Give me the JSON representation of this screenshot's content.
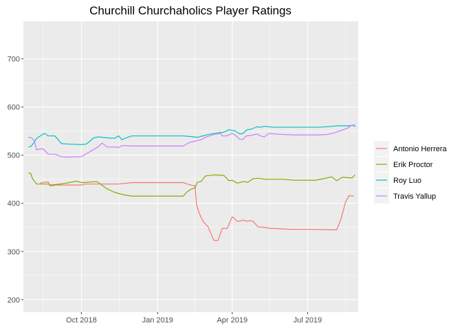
{
  "chart_data": {
    "type": "line",
    "title": "Churchill Churchaholics Player Ratings",
    "xlabel": "",
    "ylabel": "",
    "xlim": [
      "2018-07-23",
      "2019-08-31"
    ],
    "ylim": [
      174,
      778
    ],
    "x_ticks": [
      {
        "value": "2018-10-01",
        "label": "Oct 2018"
      },
      {
        "value": "2019-01-01",
        "label": "Jan 2019"
      },
      {
        "value": "2019-04-01",
        "label": "Apr 2019"
      },
      {
        "value": "2019-07-01",
        "label": "Jul 2019"
      }
    ],
    "y_ticks": [
      200,
      300,
      400,
      500,
      600,
      700
    ],
    "grid": true,
    "legend_position": "right",
    "series": [
      {
        "name": "Antonio Herrera",
        "color": "#F8766D",
        "points": [
          [
            "2018-08-12",
            442
          ],
          [
            "2018-08-18",
            444
          ],
          [
            "2018-08-22",
            444
          ],
          [
            "2018-08-24",
            436
          ],
          [
            "2018-09-01",
            438
          ],
          [
            "2018-09-15",
            438
          ],
          [
            "2018-10-01",
            438
          ],
          [
            "2018-10-05",
            440
          ],
          [
            "2018-11-01",
            440
          ],
          [
            "2018-11-15",
            440
          ],
          [
            "2018-12-01",
            443
          ],
          [
            "2018-12-15",
            443
          ],
          [
            "2019-01-15",
            443
          ],
          [
            "2019-02-01",
            443
          ],
          [
            "2019-02-06",
            440
          ],
          [
            "2019-02-12",
            437
          ],
          [
            "2019-02-15",
            437
          ],
          [
            "2019-02-17",
            397
          ],
          [
            "2019-02-20",
            380
          ],
          [
            "2019-02-25",
            362
          ],
          [
            "2019-03-03",
            351
          ],
          [
            "2019-03-07",
            334
          ],
          [
            "2019-03-10",
            323
          ],
          [
            "2019-03-15",
            323
          ],
          [
            "2019-03-20",
            348
          ],
          [
            "2019-03-26",
            348
          ],
          [
            "2019-04-01",
            372
          ],
          [
            "2019-04-07",
            363
          ],
          [
            "2019-04-10",
            363
          ],
          [
            "2019-04-14",
            365
          ],
          [
            "2019-04-18",
            363
          ],
          [
            "2019-04-22",
            364
          ],
          [
            "2019-04-26",
            363
          ],
          [
            "2019-05-02",
            351
          ],
          [
            "2019-05-10",
            350
          ],
          [
            "2019-05-17",
            348
          ],
          [
            "2019-06-01",
            347
          ],
          [
            "2019-06-10",
            346
          ],
          [
            "2019-07-01",
            346
          ],
          [
            "2019-08-01",
            345
          ],
          [
            "2019-08-05",
            345
          ],
          [
            "2019-08-10",
            366
          ],
          [
            "2019-08-16",
            404
          ],
          [
            "2019-08-20",
            416
          ],
          [
            "2019-08-26",
            415
          ]
        ]
      },
      {
        "name": "Erik Proctor",
        "color": "#7CAE00",
        "points": [
          [
            "2018-07-29",
            463
          ],
          [
            "2018-08-01",
            462
          ],
          [
            "2018-08-03",
            451
          ],
          [
            "2018-08-08",
            440
          ],
          [
            "2018-08-22",
            440
          ],
          [
            "2018-08-26",
            438
          ],
          [
            "2018-09-10",
            441
          ],
          [
            "2018-09-25",
            446
          ],
          [
            "2018-10-01",
            443
          ],
          [
            "2018-10-10",
            444
          ],
          [
            "2018-10-20",
            445
          ],
          [
            "2018-11-01",
            430
          ],
          [
            "2018-11-10",
            423
          ],
          [
            "2018-11-20",
            418
          ],
          [
            "2018-12-01",
            415
          ],
          [
            "2018-12-15",
            415
          ],
          [
            "2019-02-01",
            415
          ],
          [
            "2019-02-05",
            423
          ],
          [
            "2019-02-10",
            429
          ],
          [
            "2019-02-15",
            432
          ],
          [
            "2019-02-18",
            444
          ],
          [
            "2019-02-22",
            445
          ],
          [
            "2019-02-28",
            457
          ],
          [
            "2019-03-10",
            459
          ],
          [
            "2019-03-22",
            458
          ],
          [
            "2019-03-28",
            447
          ],
          [
            "2019-04-01",
            448
          ],
          [
            "2019-04-07",
            442
          ],
          [
            "2019-04-10",
            443
          ],
          [
            "2019-04-14",
            445
          ],
          [
            "2019-04-20",
            444
          ],
          [
            "2019-04-26",
            451
          ],
          [
            "2019-05-02",
            452
          ],
          [
            "2019-05-10",
            450
          ],
          [
            "2019-06-01",
            450
          ],
          [
            "2019-06-15",
            448
          ],
          [
            "2019-07-01",
            448
          ],
          [
            "2019-07-10",
            448
          ],
          [
            "2019-07-20",
            451
          ],
          [
            "2019-07-30",
            455
          ],
          [
            "2019-08-05",
            447
          ],
          [
            "2019-08-12",
            454
          ],
          [
            "2019-08-20",
            453
          ],
          [
            "2019-08-24",
            453
          ],
          [
            "2019-08-27",
            459
          ]
        ]
      },
      {
        "name": "Roy Luo",
        "color": "#00BFC4",
        "points": [
          [
            "2018-07-29",
            517
          ],
          [
            "2018-08-01",
            518
          ],
          [
            "2018-08-03",
            522
          ],
          [
            "2018-08-08",
            535
          ],
          [
            "2018-08-15",
            543
          ],
          [
            "2018-08-18",
            545
          ],
          [
            "2018-08-22",
            540
          ],
          [
            "2018-08-30",
            540
          ],
          [
            "2018-09-07",
            524
          ],
          [
            "2018-09-15",
            523
          ],
          [
            "2018-10-01",
            522
          ],
          [
            "2018-10-07",
            523
          ],
          [
            "2018-10-16",
            536
          ],
          [
            "2018-10-22",
            538
          ],
          [
            "2018-11-01",
            536
          ],
          [
            "2018-11-10",
            535
          ],
          [
            "2018-11-15",
            540
          ],
          [
            "2018-11-19",
            532
          ],
          [
            "2018-11-24",
            536
          ],
          [
            "2018-12-01",
            540
          ],
          [
            "2019-01-01",
            540
          ],
          [
            "2019-02-01",
            540
          ],
          [
            "2019-02-08",
            539
          ],
          [
            "2019-02-18",
            537
          ],
          [
            "2019-02-22",
            539
          ],
          [
            "2019-03-01",
            542
          ],
          [
            "2019-03-10",
            545
          ],
          [
            "2019-03-17",
            547
          ],
          [
            "2019-03-20",
            547
          ],
          [
            "2019-03-25",
            550
          ],
          [
            "2019-03-28",
            553
          ],
          [
            "2019-04-05",
            550
          ],
          [
            "2019-04-10",
            544
          ],
          [
            "2019-04-14",
            545
          ],
          [
            "2019-04-18",
            552
          ],
          [
            "2019-04-24",
            554
          ],
          [
            "2019-05-01",
            559
          ],
          [
            "2019-05-05",
            558
          ],
          [
            "2019-05-10",
            560
          ],
          [
            "2019-05-20",
            558
          ],
          [
            "2019-06-01",
            558
          ],
          [
            "2019-06-15",
            558
          ],
          [
            "2019-07-01",
            558
          ],
          [
            "2019-07-15",
            558
          ],
          [
            "2019-08-01",
            560
          ],
          [
            "2019-08-05",
            561
          ],
          [
            "2019-08-20",
            561
          ],
          [
            "2019-08-24",
            562
          ],
          [
            "2019-08-28",
            560
          ]
        ]
      },
      {
        "name": "Travis Yallup",
        "color": "#C77CFF",
        "points": [
          [
            "2018-07-29",
            537
          ],
          [
            "2018-08-02",
            536
          ],
          [
            "2018-08-05",
            530
          ],
          [
            "2018-08-08",
            511
          ],
          [
            "2018-08-12",
            513
          ],
          [
            "2018-08-16",
            513
          ],
          [
            "2018-08-22",
            502
          ],
          [
            "2018-08-30",
            502
          ],
          [
            "2018-09-07",
            497
          ],
          [
            "2018-09-15",
            496
          ],
          [
            "2018-10-01",
            497
          ],
          [
            "2018-10-10",
            506
          ],
          [
            "2018-10-20",
            516
          ],
          [
            "2018-10-26",
            525
          ],
          [
            "2018-11-01",
            517
          ],
          [
            "2018-11-10",
            517
          ],
          [
            "2018-11-15",
            516
          ],
          [
            "2018-11-20",
            520
          ],
          [
            "2018-12-01",
            519
          ],
          [
            "2018-12-15",
            519
          ],
          [
            "2019-01-01",
            519
          ],
          [
            "2019-02-01",
            519
          ],
          [
            "2019-02-08",
            526
          ],
          [
            "2019-02-15",
            529
          ],
          [
            "2019-02-22",
            532
          ],
          [
            "2019-03-01",
            538
          ],
          [
            "2019-03-10",
            543
          ],
          [
            "2019-03-18",
            545
          ],
          [
            "2019-03-20",
            540
          ],
          [
            "2019-03-25",
            540
          ],
          [
            "2019-04-01",
            545
          ],
          [
            "2019-04-05",
            541
          ],
          [
            "2019-04-10",
            533
          ],
          [
            "2019-04-14",
            533
          ],
          [
            "2019-04-18",
            540
          ],
          [
            "2019-04-24",
            541
          ],
          [
            "2019-05-01",
            544
          ],
          [
            "2019-05-05",
            540
          ],
          [
            "2019-05-10",
            538
          ],
          [
            "2019-05-15",
            545
          ],
          [
            "2019-06-01",
            543
          ],
          [
            "2019-06-15",
            542
          ],
          [
            "2019-07-01",
            542
          ],
          [
            "2019-07-15",
            542
          ],
          [
            "2019-07-25",
            543
          ],
          [
            "2019-08-01",
            546
          ],
          [
            "2019-08-10",
            551
          ],
          [
            "2019-08-18",
            556
          ],
          [
            "2019-08-23",
            562
          ],
          [
            "2019-08-27",
            563
          ]
        ]
      }
    ]
  }
}
